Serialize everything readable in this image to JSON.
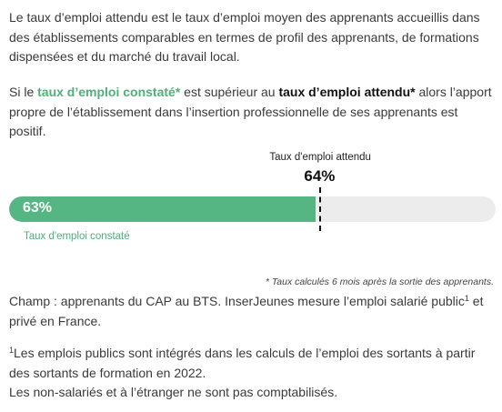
{
  "intro": {
    "definition": "Le taux d’emploi attendu est le taux d’emploi moyen des apprenants accueillis dans des établissements comparables en termes de profil des apprenants, de formations dispensées et du marché du travail local.",
    "comparison_prefix": "Si le ",
    "comparison_term_observed": "taux d’emploi constaté*",
    "comparison_middle": " est supérieur au ",
    "comparison_term_expected": "taux d’emploi attendu*",
    "comparison_suffix": " alors l’apport propre de l’établissement dans l’insertion professionnelle de ses apprenants est positif."
  },
  "gauge": {
    "observed_rate": 0.63,
    "observed_label": "63%",
    "observed_caption": "Taux d'emploi constaté",
    "expected_rate": 0.64,
    "expected_label": "64%",
    "expected_caption": "Taux d'emploi attendu",
    "fill_color": "#55b683",
    "track_color": "#ececec",
    "caption_color": "#4fb07a"
  },
  "notes": {
    "rates_note": "* Taux calculés 6 mois après la sortie des apprenants.",
    "scope_text": "Champ : apprenants du CAP au BTS. InserJeunes mesure l’emploi salarié public",
    "scope_sup": "1",
    "scope_end": " et privé en France.",
    "footnote_sup": "1",
    "footnote_line1": "Les emplois publics sont intégrés dans les calculs de l’emploi des sortants à partir des sortants de formation en 2022.",
    "footnote_line2": "Les non-salariés et à l’étranger ne sont pas comptabilisés."
  }
}
